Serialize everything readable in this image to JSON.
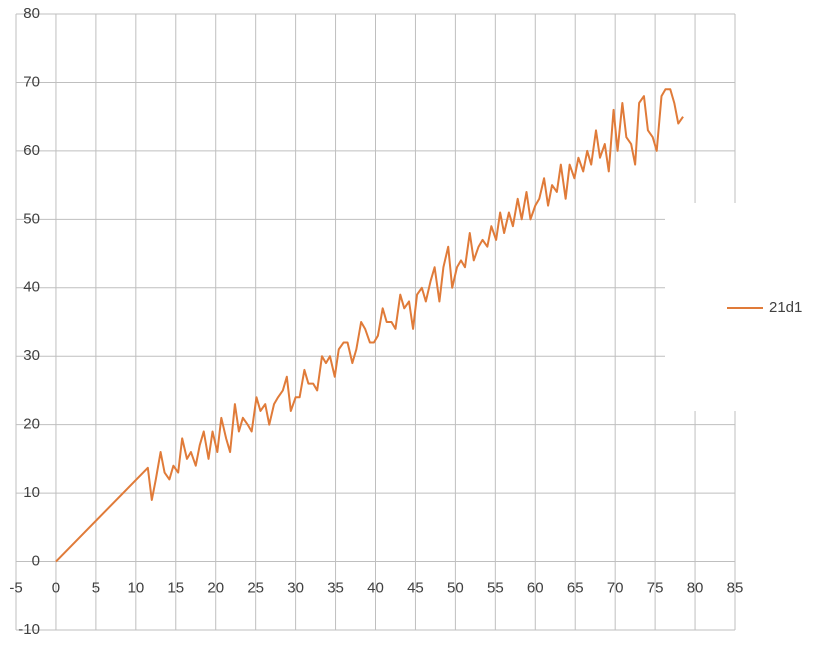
{
  "chart_data": {
    "type": "line",
    "x": [
      0,
      11.5,
      12.0,
      12.5,
      13.1,
      13.6,
      14.2,
      14.7,
      15.3,
      15.8,
      16.4,
      16.9,
      17.5,
      18.0,
      18.5,
      19.1,
      19.6,
      20.2,
      20.7,
      21.3,
      21.8,
      22.4,
      22.9,
      23.4,
      24.0,
      24.5,
      25.1,
      25.6,
      26.2,
      26.7,
      27.3,
      27.8,
      28.4,
      28.9,
      29.4,
      30.0,
      30.5,
      31.1,
      31.6,
      32.2,
      32.7,
      33.3,
      33.8,
      34.3,
      34.9,
      35.4,
      36.0,
      36.5,
      37.1,
      37.6,
      38.2,
      38.7,
      39.3,
      39.8,
      40.3,
      40.9,
      41.4,
      42.0,
      42.5,
      43.1,
      43.6,
      44.2,
      44.7,
      45.2,
      45.8,
      46.3,
      46.9,
      47.4,
      48.0,
      48.5,
      49.1,
      49.6,
      50.2,
      50.7,
      51.2,
      51.8,
      52.3,
      52.9,
      53.4,
      54.0,
      54.5,
      55.1,
      55.6,
      56.1,
      56.7,
      57.2,
      57.8,
      58.3,
      58.9,
      59.4,
      60.0,
      60.5,
      61.1,
      61.6,
      62.1,
      62.7,
      63.2,
      63.8,
      64.3,
      64.9,
      65.4,
      66.0,
      66.5,
      67.0,
      67.6,
      68.1,
      68.7,
      69.2,
      69.8,
      70.3,
      70.9,
      71.4,
      72.0,
      72.5,
      73.0,
      73.6,
      74.1,
      74.7,
      75.2,
      75.8,
      76.3,
      76.9,
      77.4,
      77.9,
      78.5
    ],
    "series": [
      {
        "name": "21d1",
        "color": "#e07b39",
        "values": [
          0,
          13.7,
          9,
          12,
          16,
          13,
          12,
          14,
          13,
          18,
          15,
          16,
          14,
          17,
          19,
          15,
          19,
          16,
          21,
          18,
          16,
          23,
          19,
          21,
          20,
          19,
          24,
          22,
          23,
          20,
          23,
          24,
          25,
          27,
          22,
          24,
          24,
          28,
          26,
          26,
          25,
          30,
          29,
          30,
          27,
          31,
          32,
          32,
          29,
          31,
          35,
          34,
          32,
          32,
          33,
          37,
          35,
          35,
          34,
          39,
          37,
          38,
          34,
          39,
          40,
          38,
          41,
          43,
          38,
          43,
          46,
          40,
          43,
          44,
          43,
          48,
          44,
          46,
          47,
          46,
          49,
          47,
          51,
          48,
          51,
          49,
          53,
          50,
          54,
          50,
          52,
          53,
          56,
          52,
          55,
          54,
          58,
          53,
          58,
          56,
          59,
          57,
          60,
          58,
          63,
          59,
          61,
          57,
          66,
          60,
          67,
          62,
          61,
          58,
          67,
          68,
          63,
          62,
          60,
          68,
          69,
          69,
          67,
          64,
          65
        ]
      }
    ],
    "xlim": [
      -5,
      85
    ],
    "xticks": [
      -5,
      0,
      5,
      10,
      15,
      20,
      25,
      30,
      35,
      40,
      45,
      50,
      55,
      60,
      65,
      70,
      75,
      80,
      85
    ],
    "ylim": [
      -10,
      80
    ],
    "yticks": [
      -10,
      0,
      10,
      20,
      30,
      40,
      50,
      60,
      70,
      80
    ],
    "grid": true,
    "legend": "right"
  }
}
